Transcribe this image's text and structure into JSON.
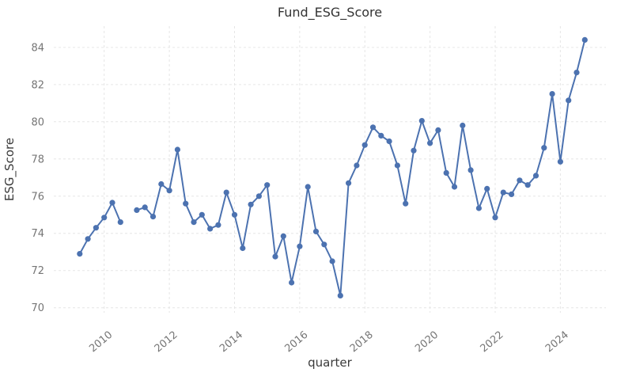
{
  "figure": {
    "title": "Fund_ESG_Score",
    "xlabel": "quarter",
    "ylabel": "ESG_Score"
  },
  "chart_data": {
    "type": "line",
    "title": "Fund_ESG_Score",
    "xlabel": "quarter",
    "ylabel": "ESG_Score",
    "series_name": "Fund_ESG_Score",
    "x": [
      "2009Q2",
      "2009Q3",
      "2009Q4",
      "2010Q1",
      "2010Q2",
      "2010Q3",
      "2010Q4",
      "2011Q1",
      "2011Q2",
      "2011Q3",
      "2011Q4",
      "2012Q1",
      "2012Q2",
      "2012Q3",
      "2012Q4",
      "2013Q1",
      "2013Q2",
      "2013Q3",
      "2013Q4",
      "2014Q1",
      "2014Q2",
      "2014Q3",
      "2014Q4",
      "2015Q1",
      "2015Q2",
      "2015Q3",
      "2015Q4",
      "2016Q1",
      "2016Q2",
      "2016Q3",
      "2016Q4",
      "2017Q1",
      "2017Q2",
      "2017Q3",
      "2017Q4",
      "2018Q1",
      "2018Q2",
      "2018Q3",
      "2018Q4",
      "2019Q1",
      "2019Q2",
      "2019Q3",
      "2019Q4",
      "2020Q1",
      "2020Q2",
      "2020Q3",
      "2020Q4",
      "2021Q1",
      "2021Q2",
      "2021Q3",
      "2021Q4",
      "2022Q1",
      "2022Q2",
      "2022Q3",
      "2022Q4",
      "2023Q1",
      "2023Q2",
      "2023Q3",
      "2023Q4",
      "2024Q1",
      "2024Q2",
      "2024Q3",
      "2024Q4"
    ],
    "values": [
      72.9,
      73.7,
      74.3,
      74.85,
      75.65,
      74.6,
      null,
      75.25,
      75.4,
      74.9,
      76.65,
      76.3,
      78.5,
      75.6,
      74.6,
      75.0,
      74.25,
      74.45,
      76.2,
      75.0,
      73.2,
      75.55,
      76.0,
      76.6,
      72.75,
      73.85,
      71.35,
      73.3,
      76.5,
      74.1,
      73.4,
      72.5,
      70.65,
      76.7,
      77.65,
      78.75,
      79.7,
      79.25,
      78.95,
      77.65,
      75.6,
      78.45,
      80.05,
      78.85,
      79.55,
      77.25,
      76.5,
      79.8,
      77.4,
      75.35,
      76.4,
      74.85,
      76.2,
      76.1,
      76.85,
      76.6,
      77.1,
      78.6,
      81.5,
      77.85,
      81.15,
      82.65,
      84.4
    ],
    "missing_note": "line break (no data) at 2010Q4",
    "x_ticks": [
      {
        "label": "2010",
        "index": 3
      },
      {
        "label": "2012",
        "index": 11
      },
      {
        "label": "2014",
        "index": 19
      },
      {
        "label": "2016",
        "index": 27
      },
      {
        "label": "2018",
        "index": 35
      },
      {
        "label": "2020",
        "index": 43
      },
      {
        "label": "2022",
        "index": 51
      },
      {
        "label": "2024",
        "index": 59
      }
    ],
    "y_ticks": [
      70,
      72,
      74,
      76,
      78,
      80,
      82,
      84
    ],
    "ylim": [
      69.7,
      85.1
    ],
    "grid": true,
    "grid_style": "dashed",
    "legend": "none",
    "marker": "o"
  },
  "theme": {
    "background": "#ffffff",
    "line_color": "#4C72B0",
    "marker_color": "#4C72B0",
    "grid_color": "#e6e6e6",
    "tick_text_color": "#757575",
    "axis_label_color": "#3a3a3a",
    "title_color": "#333333"
  }
}
